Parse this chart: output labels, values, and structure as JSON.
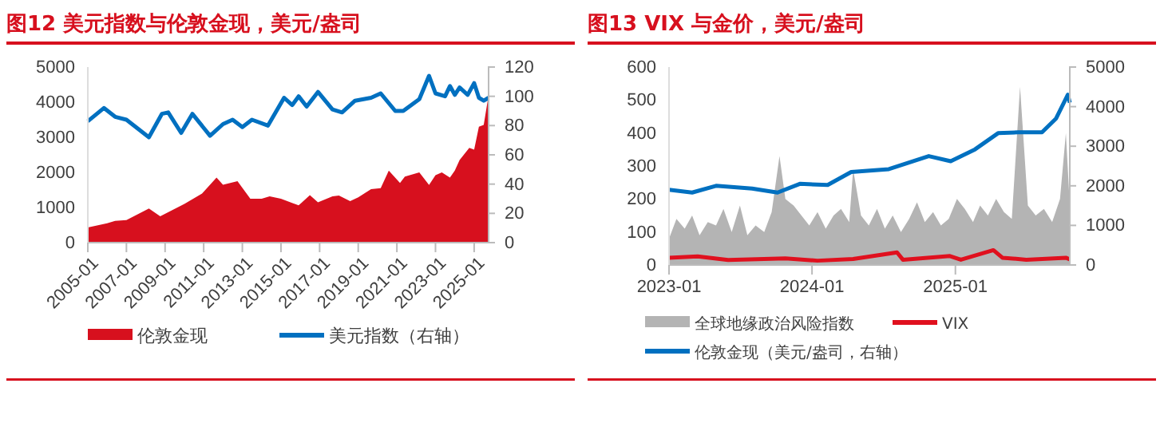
{
  "chart_data": [
    {
      "type": "area",
      "title": "图12  美元指数与伦敦金现，美元/盎司",
      "xlim": [
        "2005-01",
        "2025-10"
      ],
      "xticks": [
        "2005-01",
        "2007-01",
        "2009-01",
        "2011-01",
        "2013-01",
        "2015-01",
        "2017-01",
        "2019-01",
        "2021-01",
        "2023-01",
        "2025-01"
      ],
      "ylim": [
        0,
        5000
      ],
      "yticks": [
        0,
        1000,
        2000,
        3000,
        4000,
        5000
      ],
      "y2lim": [
        0,
        120
      ],
      "y2ticks": [
        0,
        20,
        40,
        60,
        80,
        100,
        120
      ],
      "legend": "bottom",
      "series": [
        {
          "name": "伦敦金现",
          "color": "#d7101e",
          "x": [
            "2005-01",
            "2006-01",
            "2006-06",
            "2007-01",
            "2008-03",
            "2008-10",
            "2009-06",
            "2010-01",
            "2010-12",
            "2011-09",
            "2012-01",
            "2012-10",
            "2013-06",
            "2014-01",
            "2014-06",
            "2015-01",
            "2015-12",
            "2016-07",
            "2016-12",
            "2017-09",
            "2018-01",
            "2018-08",
            "2019-01",
            "2019-09",
            "2020-03",
            "2020-08",
            "2021-03",
            "2021-06",
            "2022-03",
            "2022-09",
            "2023-01",
            "2023-05",
            "2023-10",
            "2024-01",
            "2024-04",
            "2024-10",
            "2025-01",
            "2025-04",
            "2025-07",
            "2025-10"
          ],
          "values": [
            430,
            550,
            620,
            640,
            970,
            750,
            940,
            1100,
            1400,
            1850,
            1650,
            1750,
            1250,
            1250,
            1320,
            1250,
            1060,
            1350,
            1150,
            1320,
            1340,
            1180,
            1290,
            1520,
            1550,
            2050,
            1700,
            1880,
            2000,
            1640,
            1920,
            2000,
            1850,
            2050,
            2350,
            2700,
            2650,
            3300,
            3350,
            4200
          ]
        },
        {
          "name": "美元指数（右轴）",
          "type": "line",
          "axis": "y2",
          "color": "#0070c0",
          "x": [
            "2005-01",
            "2005-11",
            "2006-06",
            "2007-01",
            "2008-03",
            "2008-11",
            "2009-03",
            "2009-11",
            "2010-06",
            "2011-05",
            "2012-01",
            "2012-07",
            "2013-01",
            "2013-07",
            "2014-05",
            "2015-03",
            "2015-08",
            "2015-12",
            "2016-05",
            "2016-12",
            "2017-09",
            "2018-03",
            "2018-11",
            "2019-09",
            "2020-03",
            "2020-12",
            "2021-05",
            "2022-03",
            "2022-09",
            "2023-01",
            "2023-07",
            "2023-10",
            "2024-01",
            "2024-04",
            "2024-09",
            "2025-01",
            "2025-04",
            "2025-07",
            "2025-10"
          ],
          "values": [
            83,
            92,
            86,
            84,
            72,
            88,
            89,
            75,
            88,
            73,
            81,
            84,
            79,
            84,
            80,
            99,
            94,
            100,
            93,
            103,
            91,
            89,
            97,
            99,
            102,
            90,
            90,
            98,
            114,
            102,
            100,
            107,
            101,
            106,
            101,
            109,
            99,
            97,
            99
          ]
        }
      ]
    },
    {
      "type": "area",
      "title": "图13  VIX 与金价，美元/盎司",
      "xlim": [
        "2023-01",
        "2025-10-20"
      ],
      "xticks": [
        "2023-01",
        "2024-01",
        "2025-01"
      ],
      "ylim": [
        0,
        600
      ],
      "yticks": [
        0,
        100,
        200,
        300,
        400,
        500,
        600
      ],
      "y2lim": [
        0,
        5000
      ],
      "y2ticks": [
        0,
        1000,
        2000,
        3000,
        4000,
        5000
      ],
      "legend": "bottom",
      "series": [
        {
          "name": "全球地缘政治风险指数",
          "color": "#b4b4b4",
          "x": [
            "2023-01-01",
            "2023-01-20",
            "2023-02-10",
            "2023-03-01",
            "2023-03-20",
            "2023-04-10",
            "2023-05-01",
            "2023-05-20",
            "2023-06-10",
            "2023-07-01",
            "2023-07-20",
            "2023-08-10",
            "2023-09-01",
            "2023-09-20",
            "2023-10-10",
            "2023-10-25",
            "2023-11-15",
            "2023-12-05",
            "2023-12-25",
            "2024-01-15",
            "2024-02-05",
            "2024-02-25",
            "2024-03-15",
            "2024-04-05",
            "2024-04-15",
            "2024-05-05",
            "2024-05-25",
            "2024-06-15",
            "2024-07-05",
            "2024-07-25",
            "2024-08-15",
            "2024-09-05",
            "2024-09-25",
            "2024-10-15",
            "2024-11-05",
            "2024-11-25",
            "2024-12-15",
            "2025-01-05",
            "2025-01-25",
            "2025-02-15",
            "2025-03-05",
            "2025-03-25",
            "2025-04-15",
            "2025-05-05",
            "2025-05-25",
            "2025-06-15",
            "2025-07-05",
            "2025-07-25",
            "2025-08-15",
            "2025-09-05",
            "2025-09-25",
            "2025-10-10",
            "2025-10-20"
          ],
          "values": [
            80,
            140,
            110,
            150,
            90,
            130,
            120,
            170,
            100,
            180,
            90,
            120,
            100,
            160,
            330,
            200,
            180,
            150,
            120,
            160,
            110,
            150,
            170,
            130,
            290,
            150,
            120,
            170,
            110,
            150,
            100,
            140,
            190,
            130,
            160,
            120,
            140,
            200,
            170,
            130,
            180,
            150,
            200,
            160,
            140,
            540,
            180,
            150,
            170,
            130,
            200,
            400,
            180
          ]
        },
        {
          "name": "VIX",
          "type": "line",
          "color": "#e0101e",
          "x": [
            "2023-01-01",
            "2023-03-15",
            "2023-06-01",
            "2023-10-25",
            "2024-01-15",
            "2024-04-15",
            "2024-08-05",
            "2024-08-20",
            "2024-12-18",
            "2025-01-15",
            "2025-04-08",
            "2025-05-01",
            "2025-07-01",
            "2025-10-10",
            "2025-10-20"
          ],
          "values": [
            22,
            26,
            15,
            20,
            13,
            18,
            38,
            16,
            27,
            16,
            45,
            22,
            16,
            22,
            17
          ]
        },
        {
          "name": "伦敦金现（美元/盎司，右轴）",
          "type": "line",
          "axis": "y2",
          "color": "#0070c0",
          "x": [
            "2023-01-01",
            "2023-03-01",
            "2023-05-01",
            "2023-08-01",
            "2023-10-05",
            "2023-12-01",
            "2024-02-10",
            "2024-04-10",
            "2024-07-15",
            "2024-10-25",
            "2024-12-20",
            "2025-02-20",
            "2025-04-20",
            "2025-06-10",
            "2025-08-10",
            "2025-09-15",
            "2025-10-15",
            "2025-10-20"
          ],
          "values": [
            1900,
            1830,
            2000,
            1930,
            1830,
            2050,
            2020,
            2350,
            2420,
            2750,
            2620,
            2920,
            3330,
            3350,
            3350,
            3700,
            4300,
            4100
          ]
        }
      ]
    }
  ]
}
